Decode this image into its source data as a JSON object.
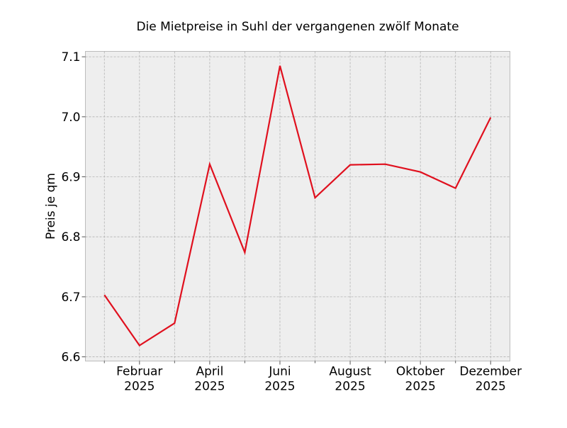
{
  "chart_data": {
    "type": "line",
    "title": "Die Mietpreise in Suhl der vergangenen zwölf Monate",
    "xlabel": "",
    "ylabel": "Preis je qm",
    "x": [
      1,
      2,
      3,
      4,
      5,
      6,
      7,
      8,
      9,
      10,
      11,
      12
    ],
    "series": [
      {
        "values": [
          6.703,
          6.619,
          6.656,
          6.921,
          6.774,
          7.085,
          6.865,
          6.92,
          6.921,
          6.908,
          6.881,
          6.999
        ],
        "color": "#e0101e"
      }
    ],
    "xticks": [
      {
        "x": 2,
        "label": "Februar",
        "year": "2025"
      },
      {
        "x": 4,
        "label": "April",
        "year": "2025"
      },
      {
        "x": 6,
        "label": "Juni",
        "year": "2025"
      },
      {
        "x": 8,
        "label": "August",
        "year": "2025"
      },
      {
        "x": 10,
        "label": "Oktober",
        "year": "2025"
      },
      {
        "x": 12,
        "label": "Dezember",
        "year": "2025"
      }
    ],
    "yticks": [
      "6.6",
      "6.7",
      "6.8",
      "6.9",
      "7.0",
      "7.1"
    ],
    "xlim": [
      0.46,
      12.55
    ],
    "ylim": [
      6.593,
      7.109
    ],
    "grid": true,
    "background": "#eeeeee"
  }
}
